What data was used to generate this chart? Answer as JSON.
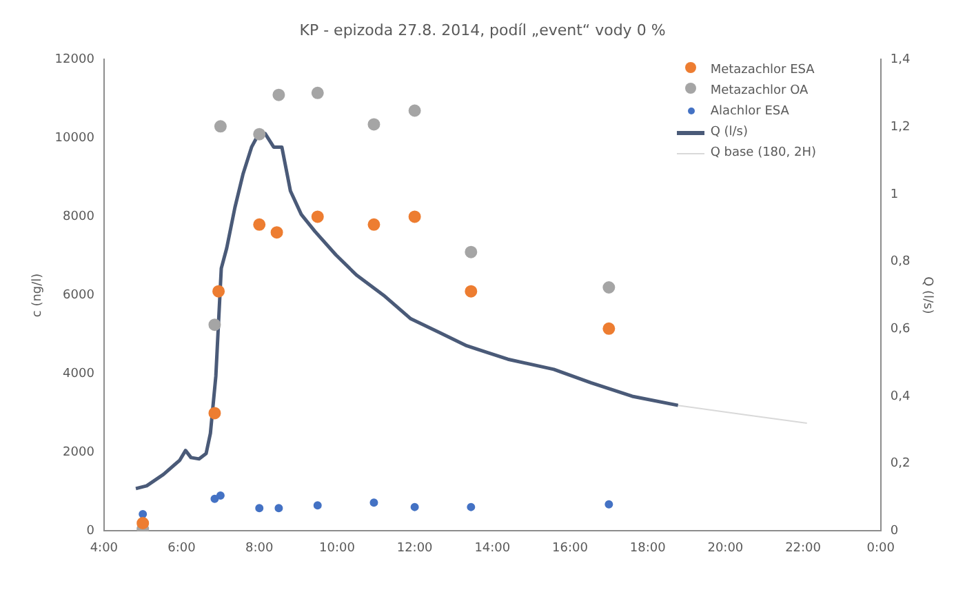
{
  "chart_data": {
    "type": "scatter",
    "title": "KP - epizoda 27.8. 2014, podíl „event“ vody 0 %",
    "ylabel": "c (ng/l)",
    "y2label": "Q (l/s)",
    "xlim": [
      4,
      24
    ],
    "xticks": [
      {
        "value": 4,
        "label": "4:00"
      },
      {
        "value": 6,
        "label": "6:00"
      },
      {
        "value": 8,
        "label": "8:00"
      },
      {
        "value": 10,
        "label": "10:00"
      },
      {
        "value": 12,
        "label": "12:00"
      },
      {
        "value": 14,
        "label": "14:00"
      },
      {
        "value": 16,
        "label": "16:00"
      },
      {
        "value": 18,
        "label": "18:00"
      },
      {
        "value": 20,
        "label": "20:00"
      },
      {
        "value": 22,
        "label": "22:00"
      },
      {
        "value": 24,
        "label": "0:00"
      }
    ],
    "ylim": [
      0,
      12000
    ],
    "yticks": [
      0,
      2000,
      4000,
      6000,
      8000,
      10000,
      12000
    ],
    "y2lim": [
      0,
      1.4
    ],
    "y2ticks": [
      0,
      {
        "value": 0.2,
        "label": "0,2"
      },
      {
        "value": 0.4,
        "label": "0,4"
      },
      {
        "value": 0.6,
        "label": "0,6"
      },
      {
        "value": 0.8,
        "label": "0,8"
      },
      1,
      {
        "value": 1.2,
        "label": "1,2"
      },
      {
        "value": 1.4,
        "label": "1,4"
      }
    ],
    "grid": false,
    "legend": "top right",
    "marker": "circle",
    "series": [
      {
        "name": "Metazachlor ESA",
        "type": "scatter",
        "color": "#ed7d31",
        "x": [
          5.0,
          6.85,
          6.95,
          8.0,
          8.45,
          9.5,
          10.95,
          12.0,
          13.45,
          17.0
        ],
        "values": [
          200,
          3000,
          6100,
          7800,
          7600,
          8000,
          7800,
          8000,
          6100,
          5150
        ]
      },
      {
        "name": "Metazachlor OA",
        "type": "scatter",
        "color": "#a5a5a5",
        "x": [
          5.0,
          6.85,
          7.0,
          8.0,
          8.5,
          9.5,
          10.95,
          12.0,
          13.45,
          17.0
        ],
        "values": [
          50,
          5250,
          10300,
          10100,
          11100,
          11150,
          10350,
          10700,
          7100,
          6200
        ]
      },
      {
        "name": "Alachlor ESA",
        "type": "scatter",
        "color": "#4472c4",
        "x": [
          5.0,
          6.85,
          7.0,
          8.0,
          8.5,
          9.5,
          10.95,
          12.0,
          13.45,
          17.0
        ],
        "values": [
          430,
          820,
          900,
          580,
          580,
          650,
          720,
          610,
          610,
          680
        ]
      },
      {
        "name": "Q (l/s)",
        "type": "line",
        "axis": "y2",
        "marker": "none",
        "color": "#4a5a78",
        "x": [
          4.82,
          5.1,
          5.53,
          5.95,
          6.1,
          6.24,
          6.45,
          6.63,
          6.74,
          6.88,
          7.02,
          7.16,
          7.37,
          7.58,
          7.8,
          7.94,
          8.15,
          8.37,
          8.58,
          8.8,
          9.08,
          9.43,
          9.97,
          10.5,
          11.2,
          11.9,
          12.63,
          13.34,
          14.4,
          15.58,
          16.54,
          17.6,
          18.78
        ],
        "values": [
          0.126,
          0.134,
          0.168,
          0.21,
          0.239,
          0.218,
          0.214,
          0.23,
          0.29,
          0.46,
          0.78,
          0.84,
          0.96,
          1.06,
          1.14,
          1.17,
          1.18,
          1.14,
          1.14,
          1.01,
          0.94,
          0.89,
          0.82,
          0.76,
          0.7,
          0.63,
          0.59,
          0.55,
          0.51,
          0.48,
          0.44,
          0.4,
          0.373
        ]
      },
      {
        "name": "Q base (180, 2H)",
        "type": "line",
        "axis": "y2",
        "marker": "none",
        "color": "#d9d9d9",
        "x": [
          18.78,
          20.5,
          22.1
        ],
        "values": [
          0.373,
          0.345,
          0.32
        ]
      }
    ]
  }
}
